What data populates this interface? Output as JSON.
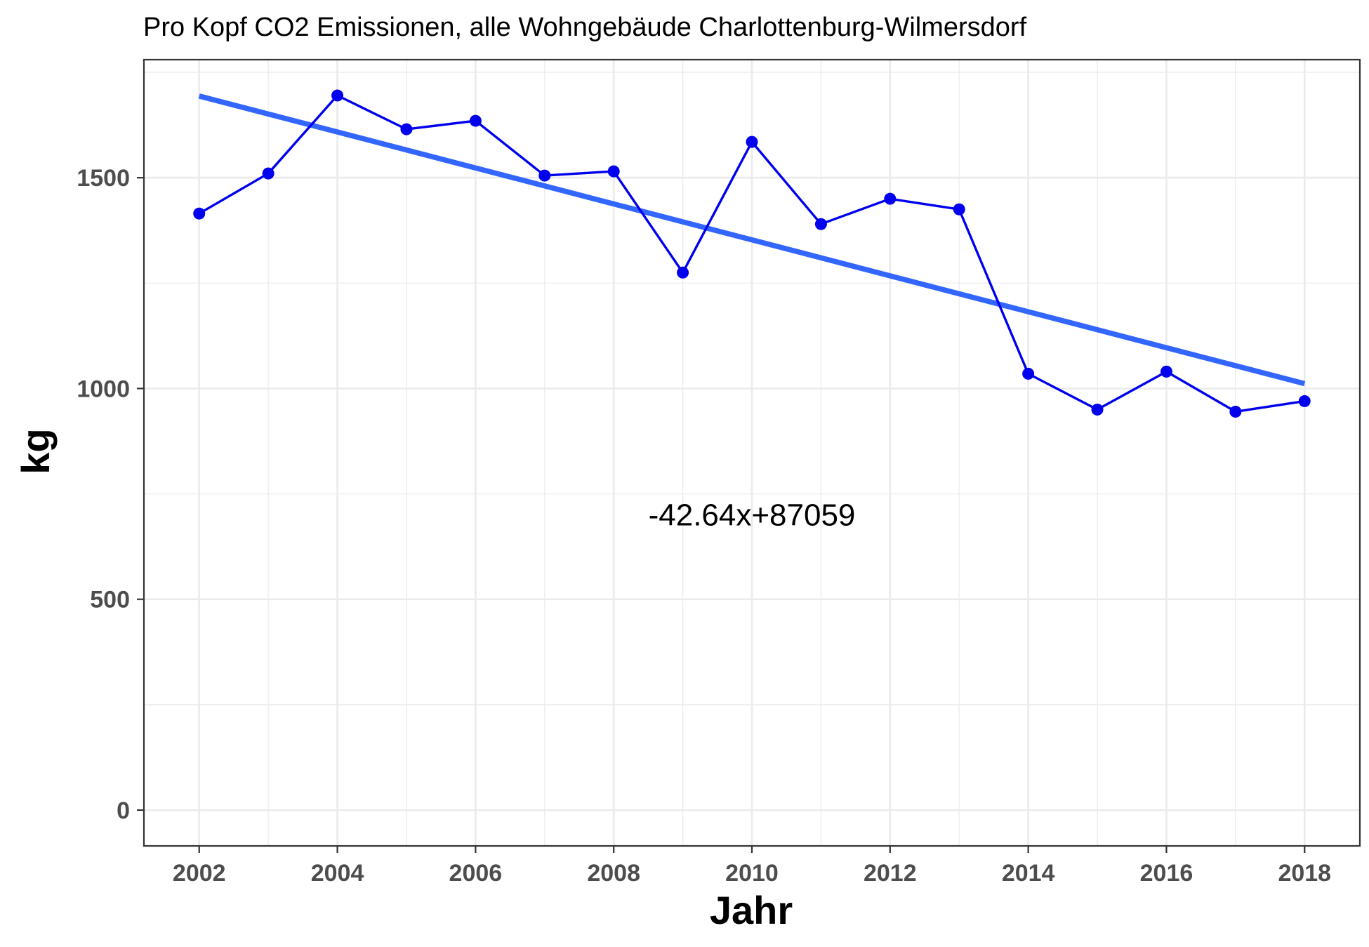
{
  "chart_data": {
    "type": "line",
    "title": "Pro Kopf CO2 Emissionen, alle Wohngebäude Charlottenburg-Wilmersdorf",
    "xlabel": "Jahr",
    "ylabel": "kg",
    "x_ticks": [
      2002,
      2004,
      2006,
      2008,
      2010,
      2012,
      2014,
      2016,
      2018
    ],
    "y_ticks": [
      0,
      500,
      1000,
      1500
    ],
    "xlim": [
      2001.2,
      2018.8
    ],
    "ylim": [
      -85,
      1780
    ],
    "grid": true,
    "series": [
      {
        "color": "#0000ee",
        "x": [
          2002,
          2003,
          2004,
          2005,
          2006,
          2007,
          2008,
          2009,
          2010,
          2011,
          2012,
          2013,
          2014,
          2015,
          2016,
          2017,
          2018
        ],
        "y": [
          1415,
          1510,
          1695,
          1615,
          1635,
          1505,
          1515,
          1275,
          1585,
          1390,
          1450,
          1425,
          1035,
          950,
          1040,
          945,
          970
        ]
      }
    ],
    "trendline": {
      "color": "#3366ff",
      "slope": -42.64,
      "intercept": 87059,
      "x_range": [
        2002,
        2018
      ]
    },
    "annotation": {
      "text": "-42.64x+87059",
      "x": 2010,
      "y": 700
    }
  }
}
